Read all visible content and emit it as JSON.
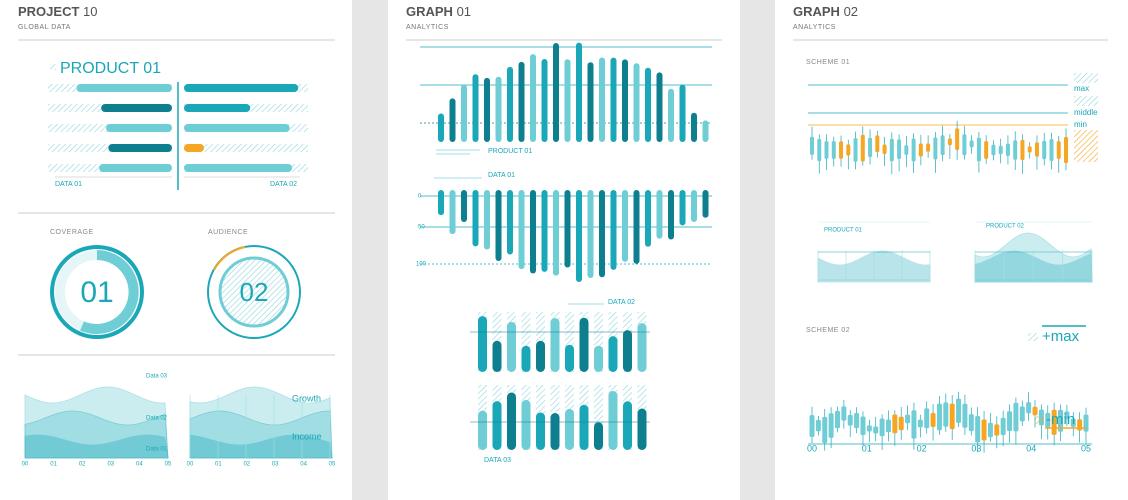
{
  "panel1": {
    "title": "PROJECT",
    "number": "10",
    "subtitle": "GLOBAL DATA",
    "product": "PRODUCT 01",
    "data_left": "DATA 01",
    "data_right": "DATA 02",
    "coverage": "COVERAGE",
    "audience": "AUDIENCE",
    "ring1": "01",
    "ring2": "02",
    "legend": [
      "Data 03",
      "Data 02",
      "Data 01"
    ],
    "growth": "Growth",
    "income": "Income",
    "axis": [
      "00",
      "01",
      "02",
      "03",
      "04",
      "05"
    ]
  },
  "panel2": {
    "title": "GRAPH",
    "number": "01",
    "subtitle": "ANALYTICS",
    "product": "PRODUCT 01",
    "data1": "DATA 01",
    "data2": "DATA 02",
    "data3": "DATA 03",
    "scale": [
      "0",
      "50",
      "100"
    ]
  },
  "panel3": {
    "title": "GRAPH",
    "number": "02",
    "subtitle": "ANALYTICS",
    "scheme1": "SCHEME 01",
    "max": "max",
    "middle": "middle",
    "min": "min",
    "product1": "PRODUCT 01",
    "product2": "PRODUCT 02",
    "scheme2": "SCHEME 02",
    "plus_max": "+max",
    "minus_min": "-min",
    "axis": [
      "00",
      "01",
      "02",
      "03",
      "04",
      "05"
    ]
  }
}
